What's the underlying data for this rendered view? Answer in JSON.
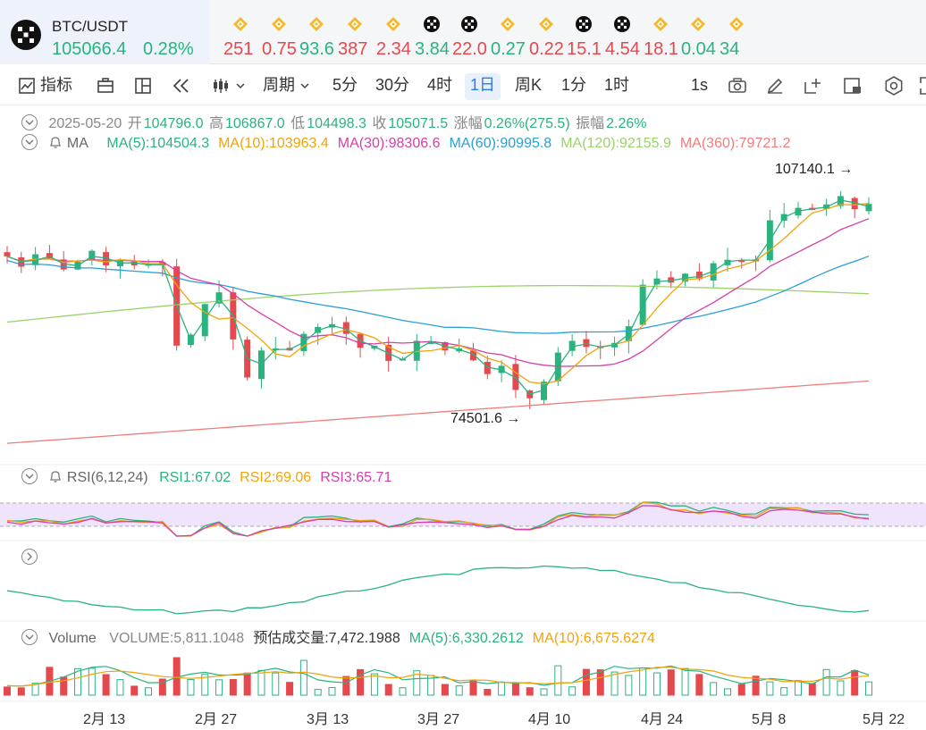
{
  "header": {
    "symbol": "BTC/USDT",
    "price": "105066.4",
    "change_pct": "0.28%",
    "tickers": [
      {
        "value": "251",
        "dir": "down",
        "icon": "bnb-icon"
      },
      {
        "value": "0.75",
        "dir": "down",
        "icon": "bnb-icon"
      },
      {
        "value": "93.6",
        "dir": "up",
        "icon": "bnb-icon"
      },
      {
        "value": "387",
        "dir": "down",
        "icon": "bnb-icon"
      },
      {
        "value": "2.34",
        "dir": "down",
        "icon": "bnb-icon"
      },
      {
        "value": "3.84",
        "dir": "up",
        "icon": "okx-icon"
      },
      {
        "value": "22.0",
        "dir": "down",
        "icon": "okx-icon"
      },
      {
        "value": "0.27",
        "dir": "up",
        "icon": "bnb-icon"
      },
      {
        "value": "0.22",
        "dir": "down",
        "icon": "bnb-icon"
      },
      {
        "value": "15.1",
        "dir": "down",
        "icon": "okx-icon"
      },
      {
        "value": "4.54",
        "dir": "down",
        "icon": "okx-icon"
      },
      {
        "value": "18.1",
        "dir": "down",
        "icon": "bnb-icon"
      },
      {
        "value": "0.04",
        "dir": "up",
        "icon": "bnb-icon"
      },
      {
        "value": "34",
        "dir": "up",
        "icon": "bnb-icon"
      }
    ]
  },
  "toolbar": {
    "indicators": "指标",
    "period": "周期",
    "intervals": [
      "5分",
      "30分",
      "4时",
      "1日",
      "周K",
      "1分",
      "1时"
    ],
    "active_interval": "1日",
    "seconds": "1s"
  },
  "ohlc": {
    "date": "2025-05-20",
    "open_label": "开",
    "open": "104796.0",
    "high_label": "高",
    "high": "106867.0",
    "low_label": "低",
    "low": "104498.3",
    "close_label": "收",
    "close": "105071.5",
    "change_label": "涨幅",
    "change": "0.26%(275.5)",
    "amp_label": "振幅",
    "amp": "2.26%"
  },
  "ma_legend": {
    "name": "MA",
    "items": [
      {
        "text": "MA(5):104504.3",
        "color": "#2ab37f"
      },
      {
        "text": "MA(10):103963.4",
        "color": "#f0a30a"
      },
      {
        "text": "MA(30):98306.6",
        "color": "#d63fa8"
      },
      {
        "text": "MA(60):90995.8",
        "color": "#2a9fd6"
      },
      {
        "text": "MA(120):92155.9",
        "color": "#9bd36a"
      },
      {
        "text": "MA(360):79721.2",
        "color": "#f07c7c"
      }
    ]
  },
  "annotations": {
    "high": "107140.1",
    "low": "74501.6"
  },
  "rsi_legend": {
    "name": "RSI(6,12,24)",
    "items": [
      {
        "text": "RSI1:67.02",
        "color": "#2ab37f"
      },
      {
        "text": "RSI2:69.06",
        "color": "#f0a30a"
      },
      {
        "text": "RSI3:65.71",
        "color": "#d63fa8"
      }
    ]
  },
  "volume_legend": {
    "name": "Volume",
    "items": [
      {
        "text": "VOLUME:5,811.1048",
        "color": "#888888"
      },
      {
        "text": "预估成交量:7,472.1988",
        "color": "#333333"
      },
      {
        "text": "MA(5):6,330.2612",
        "color": "#2ab37f"
      },
      {
        "text": "MA(10):6,675.6274",
        "color": "#f0a30a"
      }
    ]
  },
  "x_axis": [
    "2月 13",
    "2月 27",
    "3月 13",
    "3月 27",
    "4月 10",
    "4月 24",
    "5月 8",
    "5月 22"
  ],
  "chart_data": {
    "type": "candlestick",
    "title": "BTC/USDT 1日",
    "price_range": [
      70000,
      110000
    ],
    "series": [
      {
        "name": "price_close_path",
        "values": [
          97500,
          96000,
          97800,
          97200,
          95600,
          96700,
          98300,
          96200,
          96900,
          96200,
          96400,
          96200,
          84600,
          86200,
          90600,
          92300,
          85500,
          80000,
          83900,
          84200,
          83900,
          86300,
          87300,
          87700,
          86300,
          84300,
          84600,
          82400,
          82700,
          85300,
          85100,
          83900,
          84200,
          82500,
          80500,
          81700,
          78200,
          77000,
          79400,
          83600,
          85300,
          84400,
          84400,
          85000,
          87400,
          93400,
          94300,
          93700,
          95000,
          94200,
          96500,
          97000,
          96900,
          97000,
          102700,
          103600,
          104500,
          104200,
          105000,
          106200,
          104300,
          105071
        ]
      },
      {
        "name": "MA(5)",
        "values": [
          104504.3
        ]
      },
      {
        "name": "MA(10)",
        "values": [
          103963.4
        ]
      },
      {
        "name": "MA(30)",
        "values": [
          98306.6
        ]
      },
      {
        "name": "MA(60)",
        "values": [
          90995.8
        ]
      },
      {
        "name": "MA(120)",
        "values": [
          92155.9
        ]
      },
      {
        "name": "MA(360)",
        "values": [
          79721.2
        ]
      }
    ],
    "annotations": {
      "high": 107140.1,
      "low": 74501.6
    },
    "rsi": {
      "rsi1": 67.02,
      "rsi2": 69.06,
      "rsi3": 65.71
    },
    "volume": {
      "volume": 5811.1048,
      "estimated": 7472.1988,
      "ma5": 6330.2612,
      "ma10": 6675.6274
    }
  }
}
